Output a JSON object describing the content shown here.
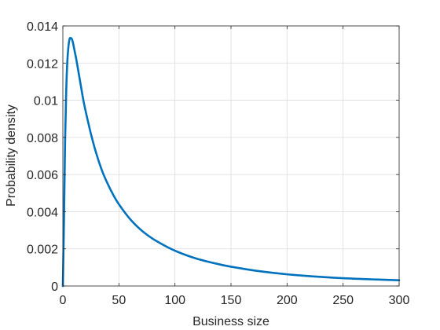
{
  "chart_data": {
    "type": "line",
    "title": "",
    "xlabel": "Business size",
    "ylabel": "Probability density",
    "xlim": [
      0,
      300
    ],
    "ylim": [
      0,
      0.014
    ],
    "grid": true,
    "legend": "none",
    "x_ticks": [
      0,
      50,
      100,
      150,
      200,
      250,
      300
    ],
    "x_tick_labels": [
      "0",
      "50",
      "100",
      "150",
      "200",
      "250",
      "300"
    ],
    "y_ticks": [
      0,
      0.002,
      0.004,
      0.006,
      0.008,
      0.01,
      0.012,
      0.014
    ],
    "y_tick_labels": [
      "0",
      "0.002",
      "0.004",
      "0.006",
      "0.008",
      "0.01",
      "0.012",
      "0.014"
    ],
    "series": [
      {
        "color": "#0072BD",
        "x": [
          0,
          1,
          2,
          3,
          4,
          5,
          6,
          7,
          8,
          9,
          10,
          11,
          12,
          14,
          16,
          18,
          20,
          25,
          30,
          35,
          40,
          45,
          50,
          60,
          70,
          80,
          90,
          100,
          110,
          120,
          130,
          140,
          150,
          175,
          200,
          225,
          250,
          275,
          300
        ],
        "y": [
          0,
          0.0035,
          0.0078,
          0.0105,
          0.0121,
          0.0129,
          0.0133,
          0.01335,
          0.0133,
          0.0131,
          0.0128,
          0.0125,
          0.0122,
          0.0115,
          0.0108,
          0.0101,
          0.0095,
          0.0082,
          0.0071,
          0.0062,
          0.0055,
          0.0049,
          0.0044,
          0.0036,
          0.003,
          0.00255,
          0.0022,
          0.0019,
          0.00166,
          0.00146,
          0.0013,
          0.00116,
          0.00104,
          0.0008,
          0.00063,
          0.00051,
          0.00042,
          0.00036,
          0.00031
        ]
      }
    ]
  }
}
